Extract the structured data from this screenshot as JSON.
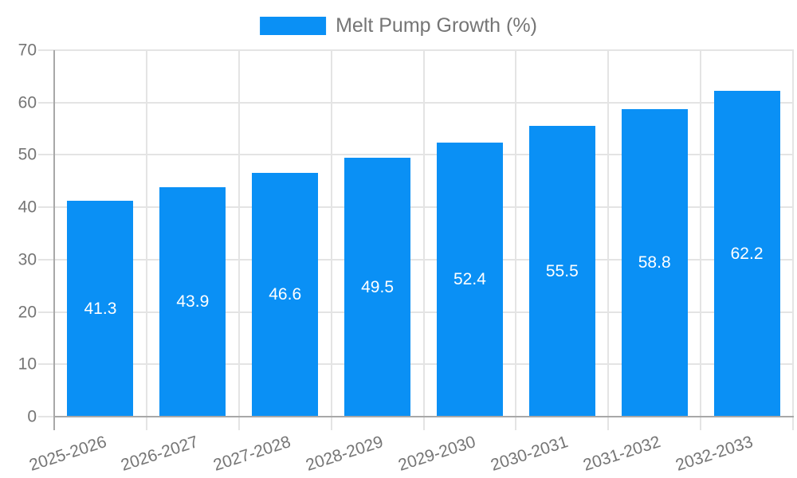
{
  "chart_data": {
    "type": "bar",
    "title": "",
    "legend_position": "top-center",
    "grid": true,
    "categories": [
      "2025-2026",
      "2026-2027",
      "2027-2028",
      "2028-2029",
      "2029-2030",
      "2030-2031",
      "2031-2032",
      "2032-2033"
    ],
    "series": [
      {
        "name": "Melt Pump Growth (%)",
        "values": [
          41.3,
          43.9,
          46.6,
          49.5,
          52.4,
          55.5,
          58.8,
          62.2
        ]
      }
    ],
    "value_labels": [
      "41.3",
      "43.9",
      "46.6",
      "49.5",
      "52.4",
      "55.5",
      "58.8",
      "62.2"
    ],
    "xlabel": "",
    "ylabel": "",
    "ylim": [
      0,
      70
    ],
    "yticks": [
      "0",
      "10",
      "20",
      "30",
      "40",
      "50",
      "60",
      "70"
    ],
    "colors": {
      "bar": "#0A90F5",
      "axis_text": "#757575",
      "gridline": "#e4e4e4",
      "axis_line": "#a8a8a8",
      "value_label": "#ffffff",
      "background": "#ffffff"
    }
  }
}
